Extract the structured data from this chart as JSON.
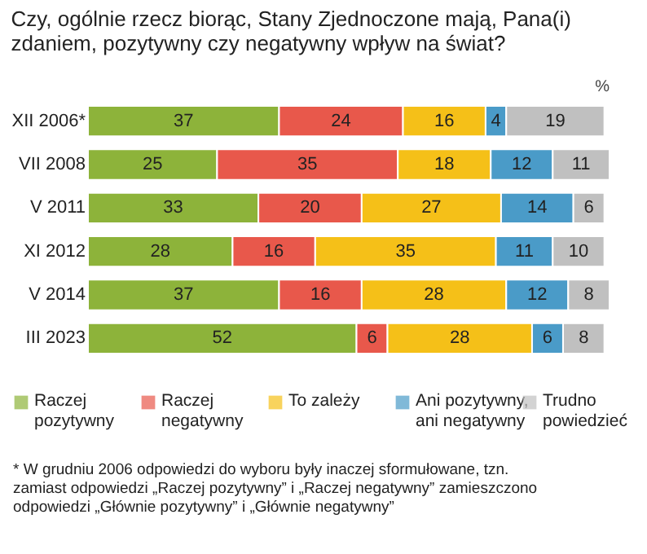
{
  "chart_data": {
    "type": "bar",
    "orientation": "horizontal",
    "stacked": true,
    "data_labels": true,
    "tick_labels": "y",
    "legend": "bottom",
    "title": "Czy, ogólnie rzecz biorąc, Stany Zjednoczone mają, Pana(i) zdaniem, pozytywny czy negatywny wpływ na świat?",
    "annotations": [
      "%",
      "* W grudniu 2006 odpowiedzi do wyboru były inaczej sformułowane, tzn. zamiast odpowiedzi „Raczej pozytywny” i „Raczej negatywny” zamieszczono odpowiedzi „Głównie pozytywny” i „Głównie negatywny”"
    ],
    "categories": [
      "XII 2006*",
      "VII 2008",
      "V 2011",
      "XI 2012",
      "V 2014",
      "III 2023"
    ],
    "series": [
      {
        "name": "Raczej pozytywny",
        "color": "#8db33a",
        "values": [
          37,
          25,
          33,
          28,
          37,
          52
        ]
      },
      {
        "name": "Raczej negatywny",
        "color": "#e8584b",
        "values": [
          24,
          35,
          20,
          16,
          16,
          6
        ]
      },
      {
        "name": "To zależy",
        "color": "#f5c018",
        "values": [
          16,
          18,
          27,
          35,
          28,
          28
        ]
      },
      {
        "name": "Ani pozytywny, ani negatywny",
        "color": "#4a9bc8",
        "values": [
          4,
          12,
          14,
          11,
          12,
          6
        ]
      },
      {
        "name": "Trudno powiedzieć",
        "color": "#c0c0c0",
        "values": [
          19,
          11,
          6,
          10,
          8,
          8
        ]
      }
    ]
  }
}
